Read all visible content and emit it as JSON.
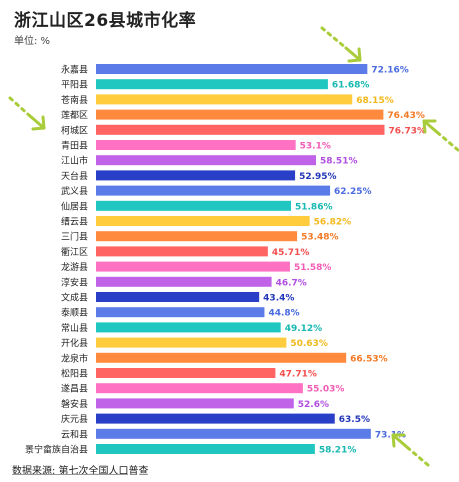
{
  "title": "浙江山区26县城市化率",
  "unit_label": "单位: %",
  "source": "数据来源: 第七次全国人口普查",
  "chart_data": {
    "type": "bar",
    "orientation": "horizontal",
    "title": "浙江山区26县城市化率",
    "xlabel": "",
    "ylabel": "",
    "xlim": [
      0,
      80
    ],
    "grid": false,
    "legend": "none",
    "categories": [
      "永嘉县",
      "平阳县",
      "苍南县",
      "莲都区",
      "柯城区",
      "青田县",
      "江山市",
      "天台县",
      "武义县",
      "仙居县",
      "缙云县",
      "三门县",
      "衢江区",
      "龙游县",
      "淳安县",
      "文成县",
      "泰顺县",
      "常山县",
      "开化县",
      "龙泉市",
      "松阳县",
      "遂昌县",
      "磐安县",
      "庆元县",
      "云和县",
      "景宁畲族自治县"
    ],
    "values": [
      72.16,
      61.68,
      68.15,
      76.43,
      76.73,
      53.1,
      58.51,
      52.95,
      62.25,
      51.86,
      56.82,
      53.48,
      45.71,
      51.58,
      46.7,
      43.4,
      44.8,
      49.12,
      50.63,
      66.53,
      47.71,
      55.03,
      52.6,
      63.5,
      73.1,
      58.21
    ],
    "value_labels": [
      "72.16%",
      "61.68%",
      "68.15%",
      "76.43%",
      "76.73%",
      "53.1%",
      "58.51%",
      "52.95%",
      "62.25%",
      "51.86%",
      "56.82%",
      "53.48%",
      "45.71%",
      "51.58%",
      "46.7%",
      "43.4%",
      "44.8%",
      "49.12%",
      "50.63%",
      "66.53%",
      "47.71%",
      "55.03%",
      "52.6%",
      "63.5%",
      "73.1%",
      "58.21%"
    ],
    "bar_colors": [
      "#5b7be9",
      "#1fc7c0",
      "#ffcc3d",
      "#ff8a3d",
      "#ff6463",
      "#ff72c3",
      "#c163e8",
      "#2a3fc7",
      "#5b7be9",
      "#1fc7c0",
      "#ffcc3d",
      "#ff8a3d",
      "#ff6463",
      "#ff72c3",
      "#c163e8",
      "#2a3fc7",
      "#5b7be9",
      "#1fc7c0",
      "#ffcc3d",
      "#ff8a3d",
      "#ff6463",
      "#ff72c3",
      "#c163e8",
      "#2a3fc7",
      "#5b7be9",
      "#1fc7c0"
    ],
    "label_colors": [
      "#4a6be0",
      "#17b8b1",
      "#f2b81c",
      "#f47a26",
      "#f24f4e",
      "#f25cb6",
      "#b04fe0",
      "#2236b8",
      "#4a6be0",
      "#17b8b1",
      "#f2b81c",
      "#f47a26",
      "#f24f4e",
      "#f25cb6",
      "#b04fe0",
      "#2236b8",
      "#4a6be0",
      "#17b8b1",
      "#f2b81c",
      "#f47a26",
      "#f24f4e",
      "#f25cb6",
      "#b04fe0",
      "#2236b8",
      "#4a6be0",
      "#17b8b1"
    ]
  },
  "colors": {
    "arrow_accent": "#a9cc3a"
  }
}
